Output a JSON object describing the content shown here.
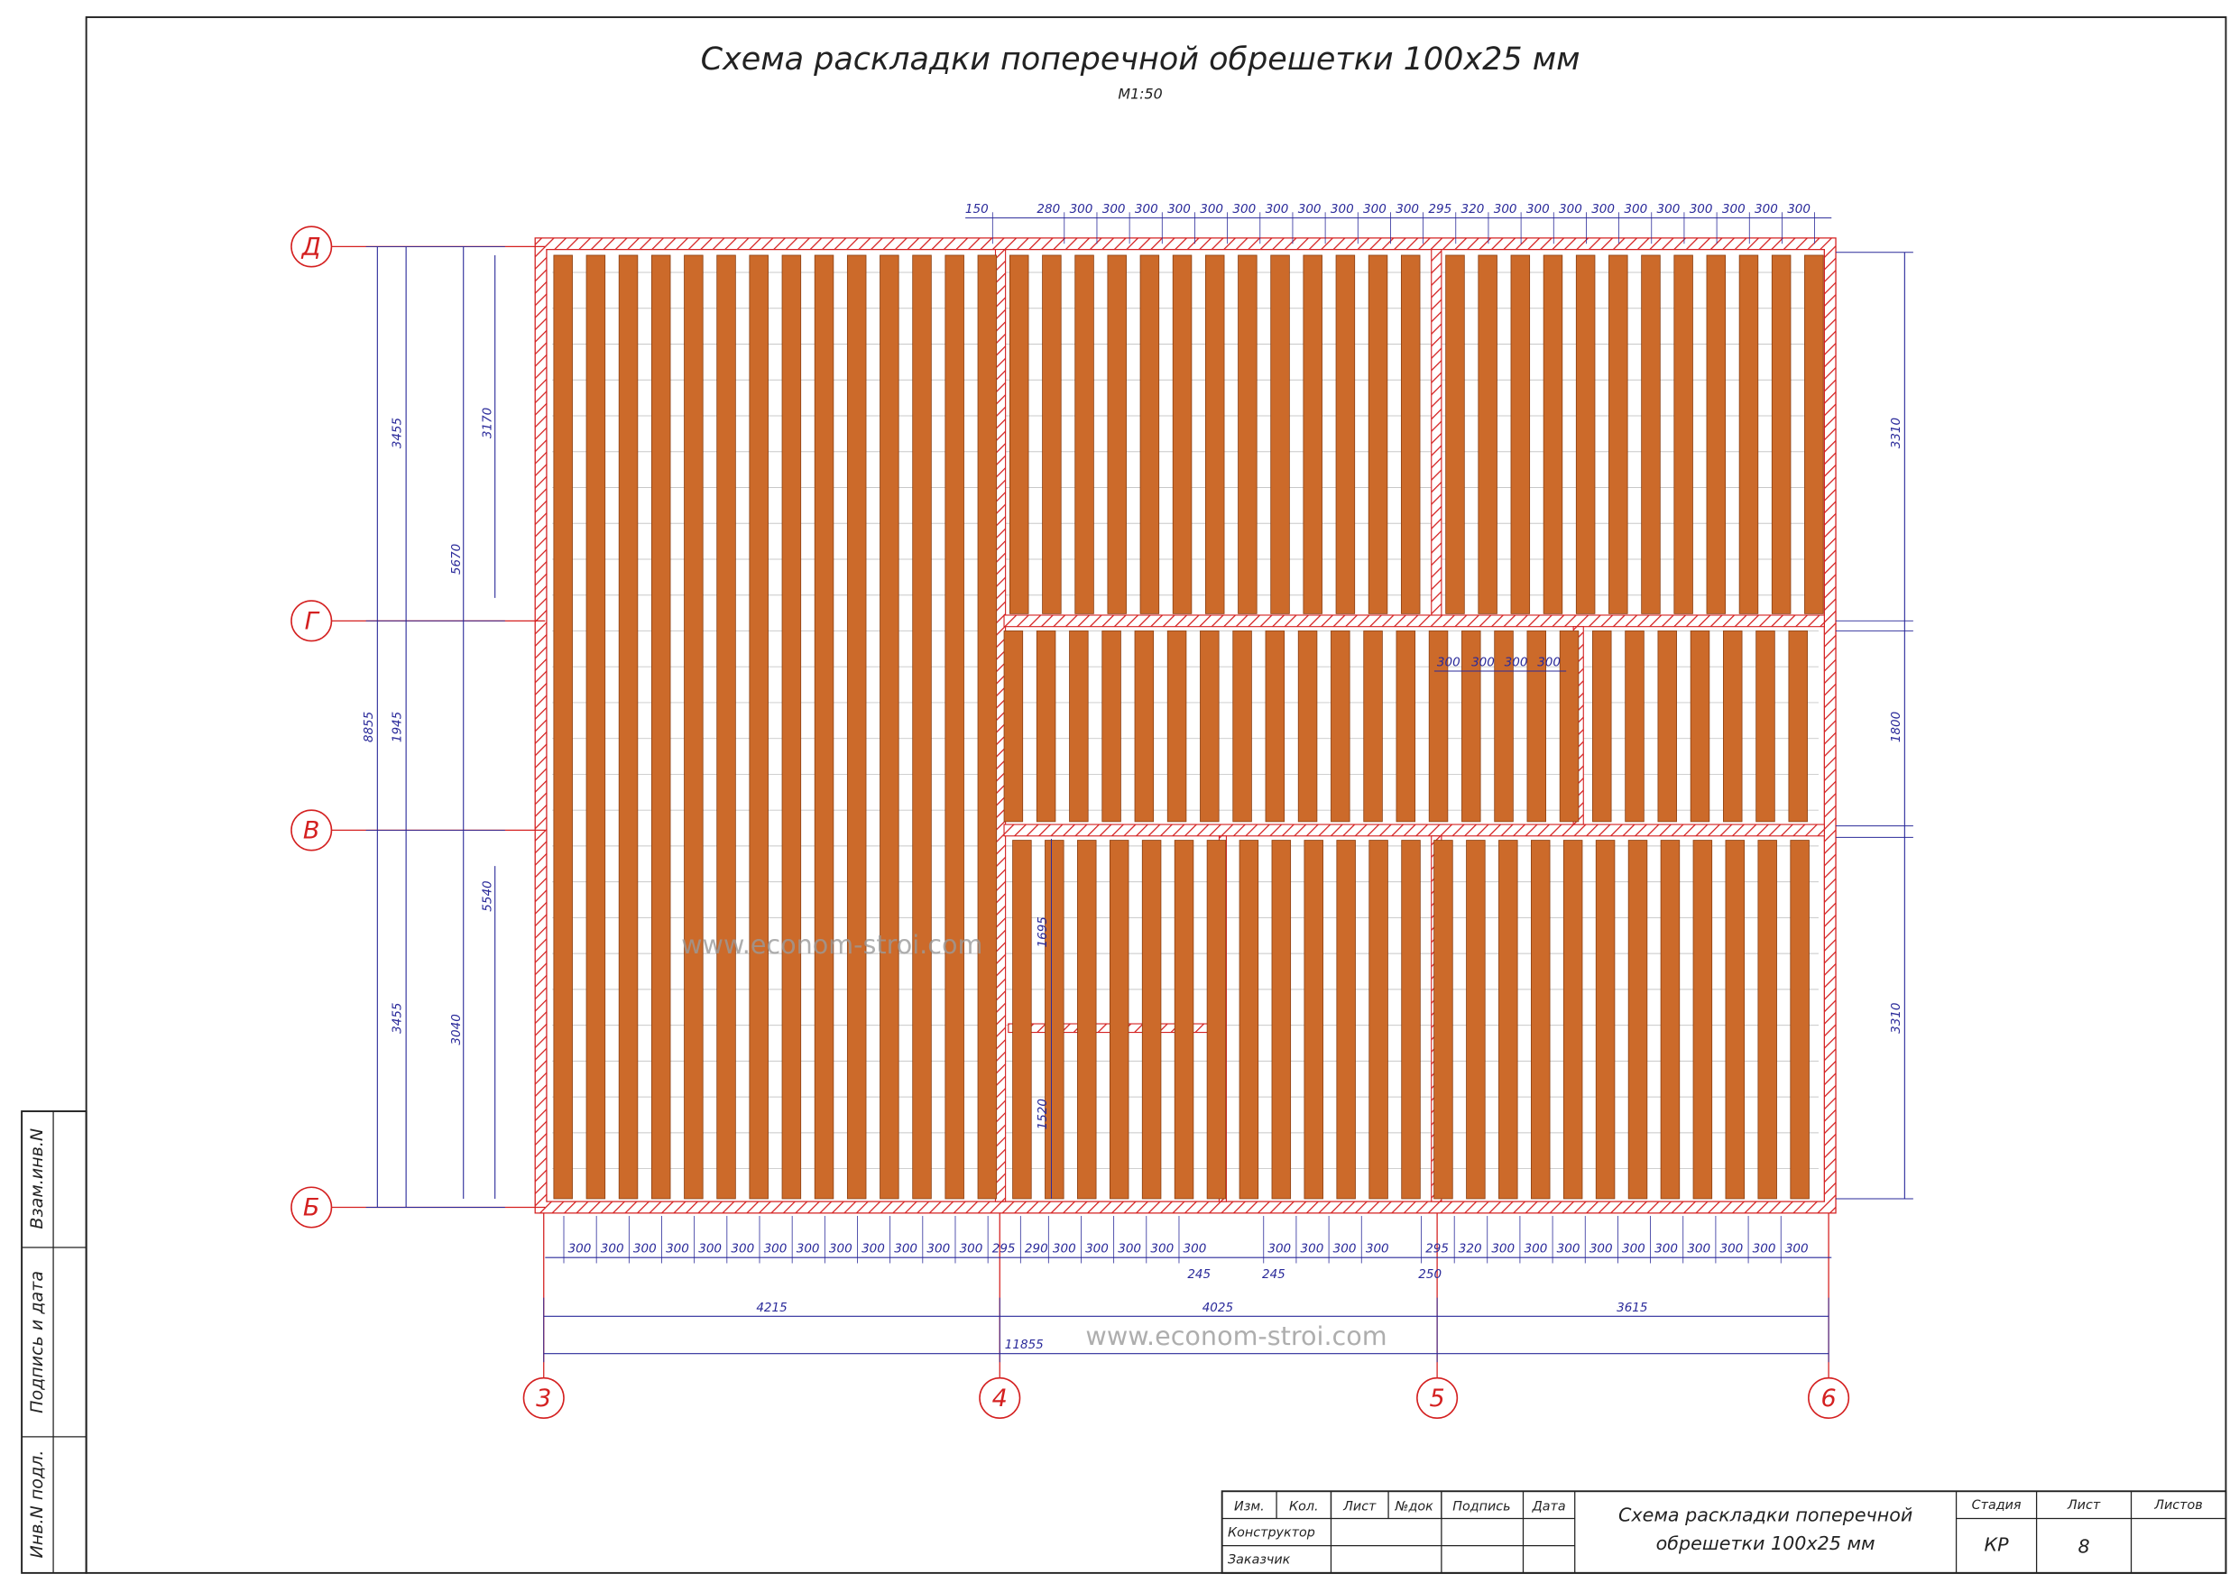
{
  "title": "Схема раскладки поперечной обрешетки 100х25 мм",
  "scale": "М1:50",
  "watermark": "www.econom-stroi.com",
  "axes_rows": [
    "Д",
    "Г",
    "В",
    "Б"
  ],
  "axes_cols": [
    "3",
    "4",
    "5",
    "6"
  ],
  "dims_top": [
    150,
    280,
    300,
    300,
    300,
    300,
    300,
    300,
    300,
    300,
    300,
    300,
    300,
    295,
    320,
    300,
    300,
    300,
    300,
    300,
    300,
    300,
    300,
    300,
    300
  ],
  "dims_bottom": [
    300,
    300,
    300,
    300,
    300,
    300,
    300,
    300,
    300,
    300,
    300,
    300,
    300,
    295,
    290,
    300,
    300,
    300,
    300,
    300,
    300,
    300,
    300,
    300,
    295,
    320,
    300,
    300,
    300,
    300,
    300,
    300,
    300,
    300,
    300,
    300
  ],
  "dims_bottom_small": [
    245,
    245,
    250
  ],
  "dims_bottom_totals": [
    4215,
    4025,
    3615
  ],
  "dims_overall": 11855,
  "dims_left": [
    8855,
    3455,
    1945,
    3455,
    5670,
    3040,
    3170,
    5540
  ],
  "dims_right": [
    3310,
    1800,
    3310
  ],
  "dims_inner": [
    300,
    300,
    300,
    300,
    1695,
    1520
  ],
  "stamp": {
    "headers": [
      "Изм.",
      "Кол.",
      "Лист",
      "№док",
      "Подпись",
      "Дата"
    ],
    "rows": [
      "Конструктор",
      "Заказчик"
    ],
    "title_lines": [
      "Схема раскладки поперечной",
      "обрешетки 100х25 мм"
    ],
    "right_headers": [
      "Стадия",
      "Лист",
      "Листов"
    ],
    "stage": "КР",
    "sheet": "8"
  },
  "side_stamp": [
    "Взам.инв.N",
    "Подпись и дата",
    "Инв.N подл."
  ]
}
